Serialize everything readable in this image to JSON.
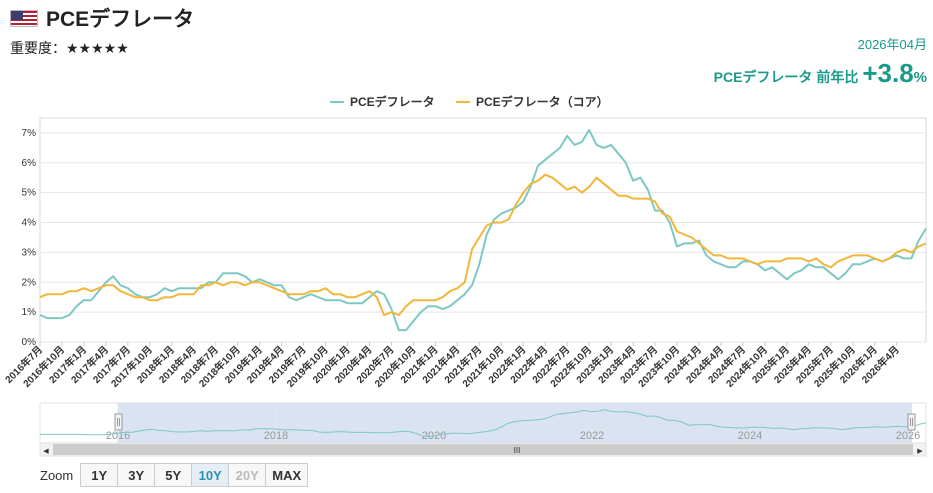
{
  "header": {
    "title": "PCEデフレータ",
    "importance_label": "重要度：",
    "importance_stars": "★★★★★"
  },
  "summary": {
    "period": "2026年04月",
    "label": "PCEデフレータ 前年比",
    "value": "+3.8",
    "unit": "%"
  },
  "colors": {
    "pce": "#7ec8c4",
    "core": "#f0b73a",
    "accent": "#1a9a8a",
    "navigator_fill": "#ccd9ee"
  },
  "zoom": {
    "label": "Zoom",
    "buttons": [
      {
        "label": "1Y",
        "state": "normal"
      },
      {
        "label": "3Y",
        "state": "normal"
      },
      {
        "label": "5Y",
        "state": "normal"
      },
      {
        "label": "10Y",
        "state": "active"
      },
      {
        "label": "20Y",
        "state": "disabled"
      },
      {
        "label": "MAX",
        "state": "normal"
      }
    ]
  },
  "navigator": {
    "year_labels": [
      "2016",
      "2018",
      "2020",
      "2022",
      "2024",
      "2026"
    ],
    "scroll_grip": "III",
    "arrow_left": "◀",
    "arrow_right": "▶"
  },
  "chart_data": {
    "type": "line",
    "legend_position": "top-center",
    "grid": "horizontal",
    "ylim": [
      0,
      7.5
    ],
    "y_ticks": [
      "0%",
      "1%",
      "2%",
      "3%",
      "4%",
      "5%",
      "6%",
      "7%"
    ],
    "x_tick_labels": [
      "2016年7月",
      "2016年10月",
      "2017年1月",
      "2017年4月",
      "2017年7月",
      "2017年10月",
      "2018年1月",
      "2018年4月",
      "2018年7月",
      "2018年10月",
      "2019年1月",
      "2019年4月",
      "2019年7月",
      "2019年10月",
      "2020年1月",
      "2020年4月",
      "2020年7月",
      "2020年10月",
      "2021年1月",
      "2021年4月",
      "2021年7月",
      "2021年10月",
      "2022年1月",
      "2022年4月",
      "2022年7月",
      "2022年10月",
      "2023年1月",
      "2023年4月",
      "2023年7月",
      "2023年10月",
      "2024年1月",
      "2024年4月",
      "2024年7月",
      "2024年10月",
      "2025年1月",
      "2025年4月",
      "2025年7月",
      "2025年10月",
      "2026年1月",
      "2026年4月"
    ],
    "series": [
      {
        "name": "PCEデフレータ",
        "values": [
          0.9,
          0.8,
          0.8,
          0.8,
          0.9,
          1.2,
          1.4,
          1.4,
          1.7,
          2.0,
          2.2,
          1.9,
          1.8,
          1.6,
          1.5,
          1.5,
          1.6,
          1.8,
          1.7,
          1.8,
          1.8,
          1.8,
          1.8,
          2.0,
          2.0,
          2.3,
          2.3,
          2.3,
          2.2,
          2.0,
          2.1,
          2.0,
          1.9,
          1.9,
          1.5,
          1.4,
          1.5,
          1.6,
          1.5,
          1.4,
          1.4,
          1.4,
          1.3,
          1.3,
          1.3,
          1.5,
          1.7,
          1.6,
          1.1,
          0.4,
          0.4,
          0.7,
          1.0,
          1.2,
          1.2,
          1.1,
          1.2,
          1.4,
          1.6,
          1.9,
          2.6,
          3.6,
          4.1,
          4.3,
          4.4,
          4.5,
          4.7,
          5.2,
          5.9,
          6.1,
          6.3,
          6.5,
          6.9,
          6.6,
          6.7,
          7.1,
          6.6,
          6.5,
          6.6,
          6.3,
          6.0,
          5.4,
          5.5,
          5.1,
          4.4,
          4.4,
          4.0,
          3.2,
          3.3,
          3.3,
          3.4,
          2.9,
          2.7,
          2.6,
          2.5,
          2.5,
          2.7,
          2.7,
          2.6,
          2.4,
          2.5,
          2.3,
          2.1,
          2.3,
          2.4,
          2.6,
          2.5,
          2.5,
          2.3,
          2.1,
          2.3,
          2.6,
          2.6,
          2.7,
          2.8,
          2.7,
          2.8,
          2.9,
          2.8,
          2.8,
          3.4,
          3.8
        ]
      },
      {
        "name": "PCEデフレータ（コア）",
        "values": [
          1.5,
          1.6,
          1.6,
          1.6,
          1.7,
          1.7,
          1.8,
          1.7,
          1.8,
          1.9,
          1.9,
          1.7,
          1.6,
          1.5,
          1.5,
          1.4,
          1.4,
          1.5,
          1.5,
          1.6,
          1.6,
          1.6,
          1.9,
          1.9,
          2.0,
          1.9,
          2.0,
          2.0,
          1.9,
          2.0,
          2.0,
          1.9,
          1.8,
          1.7,
          1.6,
          1.6,
          1.6,
          1.7,
          1.7,
          1.8,
          1.6,
          1.6,
          1.5,
          1.5,
          1.6,
          1.7,
          1.5,
          0.9,
          1.0,
          0.9,
          1.2,
          1.4,
          1.4,
          1.4,
          1.4,
          1.5,
          1.7,
          1.8,
          2.0,
          3.1,
          3.5,
          3.9,
          4.0,
          4.0,
          4.1,
          4.6,
          5.0,
          5.3,
          5.4,
          5.6,
          5.5,
          5.3,
          5.1,
          5.2,
          5.0,
          5.2,
          5.5,
          5.3,
          5.1,
          4.9,
          4.9,
          4.8,
          4.8,
          4.8,
          4.7,
          4.3,
          4.2,
          3.7,
          3.6,
          3.5,
          3.3,
          3.1,
          2.9,
          2.9,
          2.8,
          2.8,
          2.8,
          2.7,
          2.6,
          2.7,
          2.7,
          2.7,
          2.8,
          2.8,
          2.8,
          2.7,
          2.8,
          2.6,
          2.5,
          2.7,
          2.8,
          2.9,
          2.9,
          2.9,
          2.8,
          2.7,
          2.8,
          3.0,
          3.1,
          3.0,
          3.2,
          3.3
        ]
      }
    ]
  }
}
